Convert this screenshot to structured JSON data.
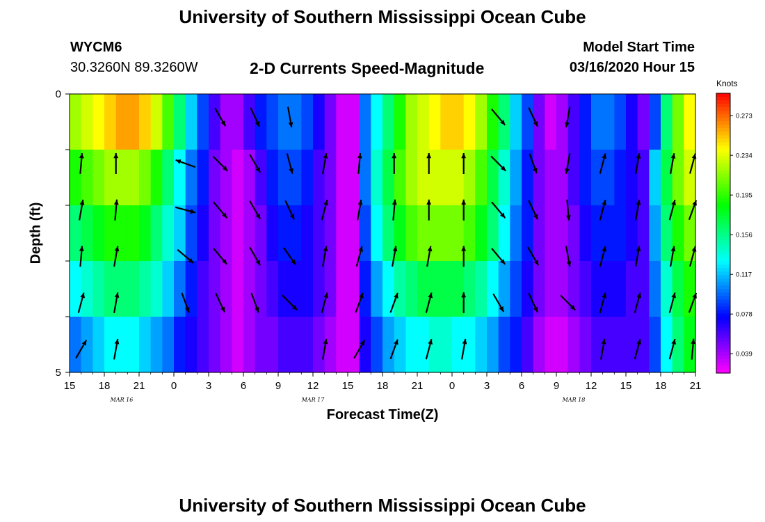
{
  "header": {
    "title": "University of Southern Mississippi Ocean Cube",
    "station": "WYCM6",
    "coords": "30.3260N 89.3260W",
    "plot_title": "2-D Currents Speed-Magnitude",
    "model_start_label": "Model Start Time",
    "model_start_value": "03/16/2020 Hour 15"
  },
  "footer": {
    "title": "University of Southern Mississippi Ocean Cube"
  },
  "chart_data": {
    "type": "heatmap",
    "title": "2-D Currents Speed-Magnitude",
    "xlabel": "Forecast Time(Z)",
    "ylabel": "Depth (ft)",
    "x_ticks": [
      "15",
      "18",
      "21",
      "0",
      "3",
      "6",
      "9",
      "12",
      "15",
      "18",
      "21",
      "0",
      "3",
      "6",
      "9",
      "12",
      "15",
      "18",
      "21"
    ],
    "date_labels": [
      {
        "label": "MAR 16",
        "hour_index": 4.5
      },
      {
        "label": "MAR 17",
        "hour_index": 21
      },
      {
        "label": "MAR 18",
        "hour_index": 43.5
      }
    ],
    "y_tick_labels": [
      "0",
      "5"
    ],
    "ylim": [
      0,
      5
    ],
    "hours": 54,
    "depth_layers": 5,
    "colorbar": {
      "title": "Knots",
      "ticks": [
        "0.273",
        "0.234",
        "0.195",
        "0.156",
        "0.117",
        "0.078",
        "0.039"
      ],
      "tick_values": [
        0.273,
        0.234,
        0.195,
        0.156,
        0.117,
        0.078,
        0.039
      ],
      "range": [
        0.02,
        0.295
      ]
    },
    "speed_knots_by_layer": [
      [
        0.22,
        0.23,
        0.24,
        0.25,
        0.26,
        0.26,
        0.25,
        0.23,
        0.2,
        0.16,
        0.12,
        0.09,
        0.06,
        0.04,
        0.04,
        0.06,
        0.08,
        0.09,
        0.1,
        0.1,
        0.09,
        0.07,
        0.05,
        0.03,
        0.03,
        0.1,
        0.13,
        0.16,
        0.19,
        0.22,
        0.23,
        0.24,
        0.25,
        0.25,
        0.24,
        0.22,
        0.19,
        0.16,
        0.12,
        0.09,
        0.05,
        0.03,
        0.04,
        0.06,
        0.08,
        0.1,
        0.1,
        0.09,
        0.07,
        0.05,
        0.09,
        0.16,
        0.21,
        0.24
      ],
      [
        0.19,
        0.2,
        0.21,
        0.22,
        0.22,
        0.22,
        0.21,
        0.19,
        0.16,
        0.13,
        0.1,
        0.08,
        0.05,
        0.04,
        0.03,
        0.04,
        0.06,
        0.08,
        0.09,
        0.09,
        0.08,
        0.06,
        0.05,
        0.03,
        0.03,
        0.1,
        0.14,
        0.17,
        0.2,
        0.22,
        0.23,
        0.23,
        0.23,
        0.23,
        0.22,
        0.2,
        0.17,
        0.14,
        0.11,
        0.08,
        0.05,
        0.04,
        0.04,
        0.06,
        0.08,
        0.09,
        0.09,
        0.08,
        0.07,
        0.06,
        0.12,
        0.17,
        0.21,
        0.23
      ],
      [
        0.16,
        0.17,
        0.18,
        0.19,
        0.19,
        0.19,
        0.18,
        0.16,
        0.14,
        0.12,
        0.09,
        0.07,
        0.05,
        0.04,
        0.03,
        0.04,
        0.05,
        0.07,
        0.08,
        0.08,
        0.07,
        0.06,
        0.05,
        0.03,
        0.03,
        0.09,
        0.13,
        0.16,
        0.18,
        0.2,
        0.21,
        0.21,
        0.21,
        0.21,
        0.2,
        0.18,
        0.16,
        0.13,
        0.1,
        0.08,
        0.05,
        0.04,
        0.04,
        0.05,
        0.07,
        0.08,
        0.08,
        0.08,
        0.07,
        0.06,
        0.11,
        0.16,
        0.19,
        0.21
      ],
      [
        0.13,
        0.14,
        0.15,
        0.16,
        0.16,
        0.16,
        0.15,
        0.14,
        0.12,
        0.1,
        0.08,
        0.06,
        0.05,
        0.04,
        0.03,
        0.04,
        0.05,
        0.06,
        0.07,
        0.07,
        0.07,
        0.06,
        0.05,
        0.03,
        0.03,
        0.08,
        0.11,
        0.13,
        0.15,
        0.16,
        0.17,
        0.17,
        0.17,
        0.17,
        0.16,
        0.15,
        0.13,
        0.11,
        0.09,
        0.07,
        0.05,
        0.04,
        0.04,
        0.05,
        0.06,
        0.07,
        0.07,
        0.07,
        0.06,
        0.06,
        0.1,
        0.14,
        0.17,
        0.19
      ],
      [
        0.1,
        0.11,
        0.12,
        0.13,
        0.13,
        0.13,
        0.12,
        0.11,
        0.1,
        0.08,
        0.07,
        0.06,
        0.05,
        0.04,
        0.03,
        0.04,
        0.05,
        0.05,
        0.06,
        0.06,
        0.06,
        0.05,
        0.04,
        0.03,
        0.03,
        0.07,
        0.09,
        0.11,
        0.12,
        0.13,
        0.13,
        0.14,
        0.14,
        0.13,
        0.13,
        0.12,
        0.11,
        0.09,
        0.08,
        0.06,
        0.04,
        0.03,
        0.03,
        0.04,
        0.05,
        0.06,
        0.06,
        0.06,
        0.06,
        0.06,
        0.09,
        0.13,
        0.16,
        0.18
      ]
    ],
    "vector_columns_hour_index": [
      1,
      4,
      7,
      10,
      13,
      16,
      19,
      22,
      25,
      28,
      31,
      34,
      37,
      40,
      43,
      46,
      49,
      52,
      54
    ],
    "vector_angles_deg_by_layer": [
      [
        null,
        null,
        null,
        null,
        150,
        155,
        170,
        null,
        null,
        null,
        null,
        null,
        140,
        155,
        190,
        null,
        null,
        null,
        null
      ],
      [
        5,
        0,
        null,
        -70,
        135,
        150,
        165,
        10,
        5,
        0,
        0,
        0,
        135,
        160,
        190,
        15,
        10,
        10,
        15
      ],
      [
        10,
        5,
        null,
        105,
        140,
        150,
        155,
        15,
        10,
        5,
        0,
        0,
        140,
        155,
        175,
        15,
        10,
        15,
        20
      ],
      [
        5,
        10,
        null,
        130,
        140,
        150,
        145,
        10,
        15,
        10,
        10,
        0,
        140,
        150,
        170,
        15,
        10,
        10,
        15
      ],
      [
        15,
        10,
        null,
        160,
        155,
        160,
        135,
        15,
        20,
        20,
        15,
        0,
        150,
        155,
        135,
        15,
        15,
        15,
        20
      ],
      [
        30,
        10,
        null,
        null,
        null,
        null,
        null,
        10,
        30,
        20,
        15,
        10,
        null,
        null,
        null,
        10,
        15,
        15,
        5
      ]
    ]
  }
}
